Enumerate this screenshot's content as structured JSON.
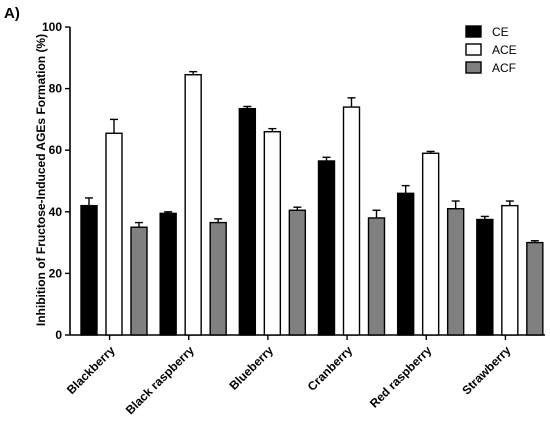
{
  "panel_label": "A)",
  "chart_data": {
    "type": "bar",
    "title": "",
    "xlabel": "",
    "ylabel": "Inhibition of Fructose-Induced AGEs Formation (%)",
    "ylim": [
      0,
      100
    ],
    "yticks": [
      0,
      20,
      40,
      60,
      80,
      100
    ],
    "categories": [
      "Blackberry",
      "Black raspberry",
      "Blueberry",
      "Cranberry",
      "Red raspberry",
      "Strawberry"
    ],
    "series": [
      {
        "name": "CE",
        "color": "#000000",
        "values": [
          42,
          39.5,
          73.5,
          56.5,
          46,
          37.5
        ],
        "errors": [
          2.5,
          0.5,
          0.7,
          1.2,
          2.5,
          1.0
        ]
      },
      {
        "name": "ACE",
        "color": "#ffffff",
        "values": [
          65.5,
          84.5,
          66,
          74,
          59,
          42
        ],
        "errors": [
          4.5,
          1.0,
          1.0,
          3.0,
          0.6,
          1.5
        ]
      },
      {
        "name": "ACF",
        "color": "#808080",
        "values": [
          35,
          36.5,
          40.5,
          38,
          41,
          30
        ],
        "errors": [
          1.5,
          1.2,
          1.0,
          2.5,
          2.5,
          0.6
        ]
      }
    ],
    "legend_position": "top-right",
    "grid": false
  }
}
